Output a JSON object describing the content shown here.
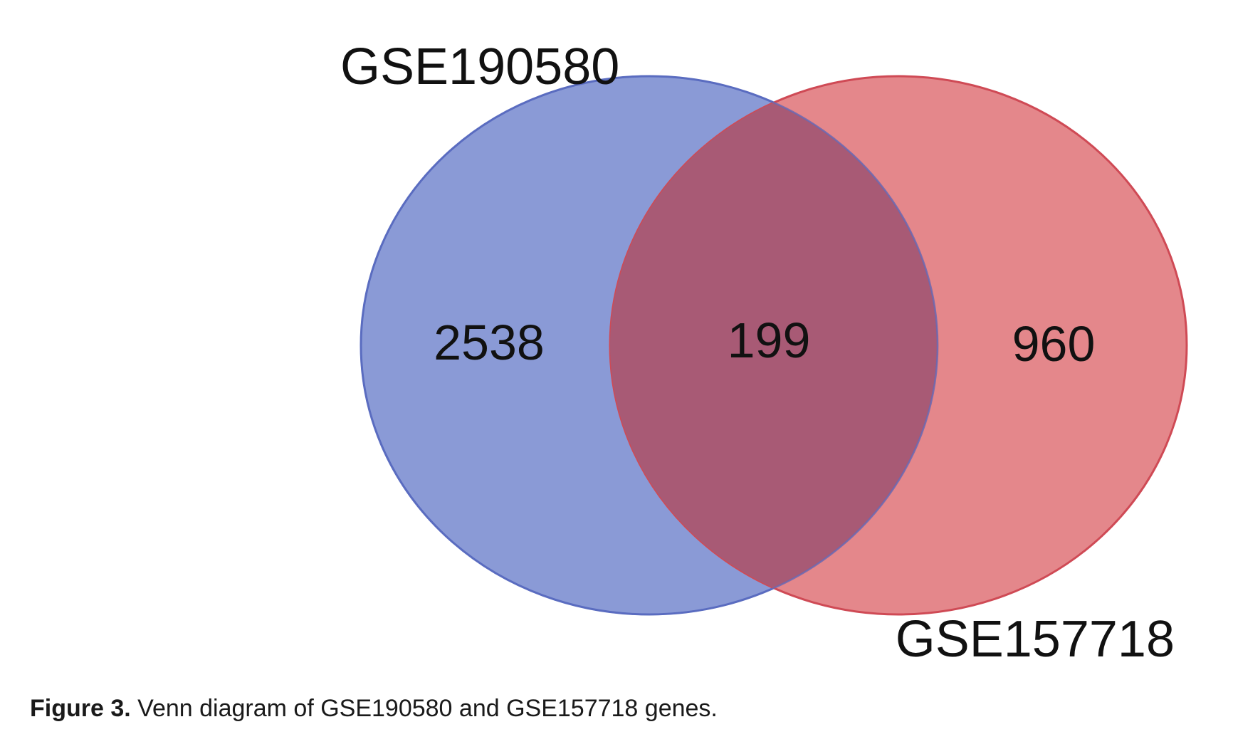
{
  "venn": {
    "sets": [
      {
        "name": "GSE190580",
        "color": "#8a9ad6",
        "stroke": "#5a6cc0"
      },
      {
        "name": "GSE157718",
        "color": "#e07378",
        "stroke": "#cf4a55"
      }
    ],
    "regions": {
      "only_left": "2538",
      "intersection": "199",
      "only_right": "960"
    },
    "overlap_color": "#a85a75"
  },
  "caption": {
    "label": "Figure 3.",
    "text": " Venn diagram of GSE190580 and GSE157718 genes."
  }
}
